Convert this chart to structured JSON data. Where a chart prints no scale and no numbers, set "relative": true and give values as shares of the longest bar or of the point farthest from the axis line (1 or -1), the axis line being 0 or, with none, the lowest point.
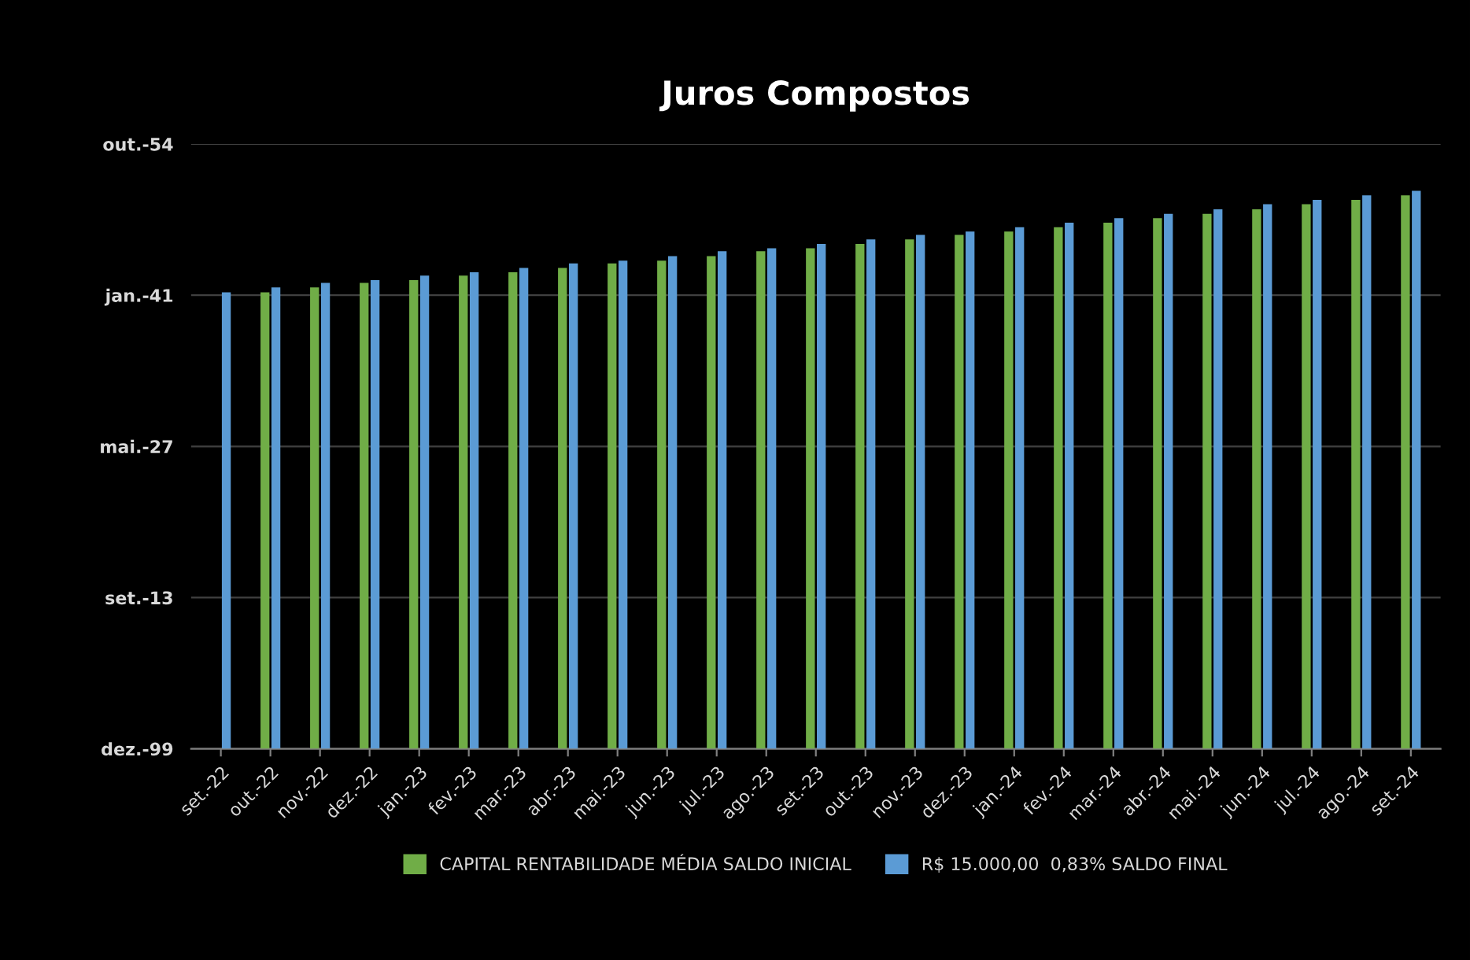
{
  "chart_data": {
    "type": "bar",
    "title": "Juros Compostos",
    "categories": [
      "set.-22",
      "out.-22",
      "nov.-22",
      "dez.-22",
      "jan.-23",
      "fev.-23",
      "mar.-23",
      "abr.-23",
      "mai.-23",
      "jun.-23",
      "jul.-23",
      "ago.-23",
      "set.-23",
      "out.-23",
      "nov.-23",
      "dez.-23",
      "jan.-24",
      "fev.-24",
      "mar.-24",
      "abr.-24",
      "mai.-24",
      "jun.-24",
      "jul.-24",
      "ago.-24",
      "set.-24"
    ],
    "series": [
      {
        "name": "CAPITAL RENTABILIDADE MÉDIA SALDO INICIAL",
        "color": "#70ad47",
        "values": [
          null,
          0.818,
          0.827,
          0.835,
          0.84,
          0.848,
          0.854,
          0.862,
          0.87,
          0.875,
          0.883,
          0.892,
          0.897,
          0.905,
          0.913,
          0.921,
          0.927,
          0.935,
          0.943,
          0.951,
          0.959,
          0.967,
          0.976,
          0.984,
          0.992
        ]
      },
      {
        "name": "R$ 15.000,00  0,83% SALDO FINAL",
        "color": "#5b9bd5",
        "values": [
          0.818,
          0.827,
          0.835,
          0.84,
          0.848,
          0.854,
          0.862,
          0.87,
          0.875,
          0.883,
          0.892,
          0.897,
          0.905,
          0.913,
          0.921,
          0.927,
          0.935,
          0.943,
          0.951,
          0.959,
          0.967,
          0.976,
          0.984,
          0.992,
          1
        ]
      }
    ],
    "relative": true,
    "y_categories": [
      "out.-54",
      "jan.-41",
      "mai.-27",
      "set.-13",
      "dez.-99"
    ],
    "grid": "y",
    "legend": "bottom"
  }
}
